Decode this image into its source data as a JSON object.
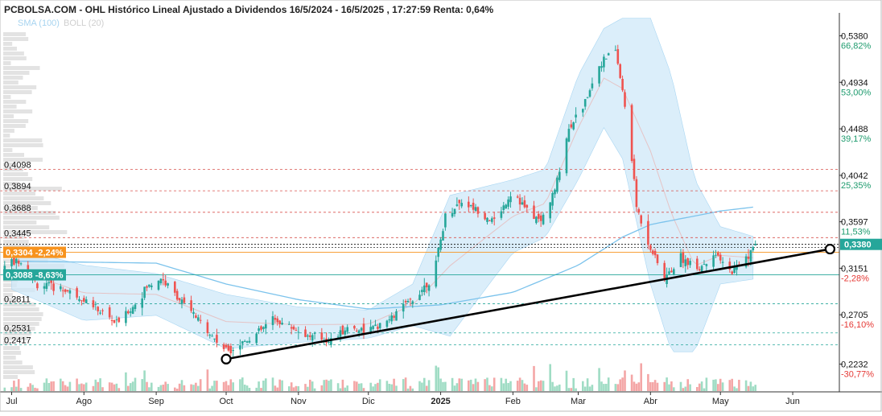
{
  "header": {
    "title": "PCBOLSA.COM - OHL Histórico Lineal Ajustado a Dividendos 16/5/2024 - 16/5/2025 , 17:27:59 Renta: 0,64%",
    "legend_sma": "SMA (100)",
    "legend_boll": "BOLL (20)"
  },
  "colors": {
    "up": "#26a69a",
    "down": "#ef5350",
    "band_fill": "#cfe8f8",
    "sma": "#7cc3ec",
    "trendline": "#000000",
    "price_tag": "#26a69a",
    "orange_tag": "#f7931e"
  },
  "chart_data": {
    "type": "candlestick",
    "title": "PCBOLSA.COM - OHL Histórico Lineal Ajustado a Dividendos 16/5/2024 - 16/5/2025 , 17:27:59 Renta: 0,64%",
    "x_range": [
      "2024-06-26",
      "2025-06-21"
    ],
    "ylim": [
      0.2125,
      0.5575
    ],
    "x_labels": [
      "Jul",
      "Ago",
      "Sep",
      "Oct",
      "Nov",
      "Dic",
      "2025",
      "Feb",
      "Mar",
      "Abr",
      "May",
      "Jun"
    ],
    "x_label_dates": [
      "2024-07-01",
      "2024-08-01",
      "2024-09-01",
      "2024-10-01",
      "2024-11-01",
      "2024-12-01",
      "2025-01-01",
      "2025-02-01",
      "2025-03-01",
      "2025-04-01",
      "2025-05-01",
      "2025-06-01"
    ],
    "right_axis": [
      {
        "value": 0.538,
        "label": "0,5380",
        "pct": "66,82%",
        "pct_sign": "pos"
      },
      {
        "value": 0.4934,
        "label": "0,4934",
        "pct": "53,00%",
        "pct_sign": "pos"
      },
      {
        "value": 0.4488,
        "label": "0,4488",
        "pct": "39,17%",
        "pct_sign": "pos"
      },
      {
        "value": 0.4042,
        "label": "0,4042",
        "pct": "25,35%",
        "pct_sign": "pos"
      },
      {
        "value": 0.3597,
        "label": "0,3597",
        "pct": "11,53%",
        "pct_sign": "pos"
      },
      {
        "value": 0.3151,
        "label": "0,3151",
        "pct": "-2,28%",
        "pct_sign": "neg"
      },
      {
        "value": 0.2705,
        "label": "0,2705",
        "pct": "-16,10%",
        "pct_sign": "neg"
      },
      {
        "value": 0.2232,
        "label": "0,2232",
        "pct": "-30,77%",
        "pct_sign": "neg"
      }
    ],
    "last_price": {
      "value": 0.338,
      "label": "0,3380"
    },
    "left_levels": [
      {
        "value": 0.4098,
        "label": "0,4098",
        "color": "#d9534f"
      },
      {
        "value": 0.3894,
        "label": "0,3894",
        "color": "#d9534f"
      },
      {
        "value": 0.3688,
        "label": "0,3688",
        "color": "#d9534f"
      },
      {
        "value": 0.3445,
        "label": "0,3445",
        "color": "#d9534f"
      },
      {
        "value": 0.2811,
        "label": "0,2811",
        "color": "#26a69a"
      },
      {
        "value": 0.2531,
        "label": "0,2531",
        "color": "#26a69a"
      },
      {
        "value": 0.2417,
        "label": "0,2417",
        "color": "#26a69a"
      }
    ],
    "tags": [
      {
        "value": 0.3304,
        "label": "0,3304",
        "pct": "-2,24%",
        "style": "orange"
      },
      {
        "value": 0.3088,
        "label": "0,3088",
        "pct": "-8,63%",
        "style": "teal"
      }
    ],
    "trendline": {
      "start": {
        "date": "2024-10-01",
        "value": 0.228
      },
      "end": {
        "date": "2025-06-17",
        "value": 0.3335
      }
    },
    "price_path": [
      {
        "date": "2024-06-26",
        "value": 0.318
      },
      {
        "date": "2024-07-05",
        "value": 0.322
      },
      {
        "date": "2024-07-12",
        "value": 0.3
      },
      {
        "date": "2024-07-22",
        "value": 0.296
      },
      {
        "date": "2024-08-01",
        "value": 0.286
      },
      {
        "date": "2024-08-08",
        "value": 0.274
      },
      {
        "date": "2024-08-15",
        "value": 0.262
      },
      {
        "date": "2024-08-22",
        "value": 0.278
      },
      {
        "date": "2024-08-28",
        "value": 0.297
      },
      {
        "date": "2024-09-03",
        "value": 0.306
      },
      {
        "date": "2024-09-10",
        "value": 0.288
      },
      {
        "date": "2024-09-18",
        "value": 0.268
      },
      {
        "date": "2024-09-25",
        "value": 0.25
      },
      {
        "date": "2024-10-01",
        "value": 0.236
      },
      {
        "date": "2024-10-07",
        "value": 0.243
      },
      {
        "date": "2024-10-14",
        "value": 0.252
      },
      {
        "date": "2024-10-21",
        "value": 0.266
      },
      {
        "date": "2024-10-28",
        "value": 0.26
      },
      {
        "date": "2024-11-05",
        "value": 0.25
      },
      {
        "date": "2024-11-15",
        "value": 0.246
      },
      {
        "date": "2024-11-22",
        "value": 0.258
      },
      {
        "date": "2024-12-01",
        "value": 0.256
      },
      {
        "date": "2024-12-08",
        "value": 0.262
      },
      {
        "date": "2024-12-15",
        "value": 0.276
      },
      {
        "date": "2024-12-22",
        "value": 0.29
      },
      {
        "date": "2024-12-29",
        "value": 0.308
      },
      {
        "date": "2025-01-03",
        "value": 0.365
      },
      {
        "date": "2025-01-10",
        "value": 0.38
      },
      {
        "date": "2025-01-17",
        "value": 0.37
      },
      {
        "date": "2025-01-24",
        "value": 0.36
      },
      {
        "date": "2025-02-01",
        "value": 0.39
      },
      {
        "date": "2025-02-07",
        "value": 0.37
      },
      {
        "date": "2025-02-13",
        "value": 0.36
      },
      {
        "date": "2025-02-19",
        "value": 0.39
      },
      {
        "date": "2025-02-25",
        "value": 0.45
      },
      {
        "date": "2025-03-03",
        "value": 0.47
      },
      {
        "date": "2025-03-10",
        "value": 0.51
      },
      {
        "date": "2025-03-17",
        "value": 0.525
      },
      {
        "date": "2025-03-21",
        "value": 0.47
      },
      {
        "date": "2025-03-24",
        "value": 0.42
      },
      {
        "date": "2025-03-26",
        "value": 0.375
      },
      {
        "date": "2025-03-31",
        "value": 0.34
      },
      {
        "date": "2025-04-07",
        "value": 0.305
      },
      {
        "date": "2025-04-14",
        "value": 0.325
      },
      {
        "date": "2025-04-22",
        "value": 0.315
      },
      {
        "date": "2025-04-28",
        "value": 0.33
      },
      {
        "date": "2025-05-05",
        "value": 0.312
      },
      {
        "date": "2025-05-12",
        "value": 0.325
      },
      {
        "date": "2025-05-16",
        "value": 0.338
      }
    ],
    "boll_upper": [
      {
        "date": "2024-07-01",
        "value": 0.335
      },
      {
        "date": "2024-08-01",
        "value": 0.318
      },
      {
        "date": "2024-09-01",
        "value": 0.31
      },
      {
        "date": "2024-10-01",
        "value": 0.29
      },
      {
        "date": "2024-11-01",
        "value": 0.278
      },
      {
        "date": "2024-12-01",
        "value": 0.275
      },
      {
        "date": "2024-12-20",
        "value": 0.3
      },
      {
        "date": "2025-01-05",
        "value": 0.385
      },
      {
        "date": "2025-02-01",
        "value": 0.4
      },
      {
        "date": "2025-02-15",
        "value": 0.41
      },
      {
        "date": "2025-03-01",
        "value": 0.5
      },
      {
        "date": "2025-03-12",
        "value": 0.545
      },
      {
        "date": "2025-03-20",
        "value": 0.555
      },
      {
        "date": "2025-04-01",
        "value": 0.555
      },
      {
        "date": "2025-04-10",
        "value": 0.5
      },
      {
        "date": "2025-04-20",
        "value": 0.4
      },
      {
        "date": "2025-05-01",
        "value": 0.355
      },
      {
        "date": "2025-05-16",
        "value": 0.345
      }
    ],
    "boll_lower": [
      {
        "date": "2024-07-01",
        "value": 0.295
      },
      {
        "date": "2024-08-01",
        "value": 0.265
      },
      {
        "date": "2024-09-01",
        "value": 0.27
      },
      {
        "date": "2024-10-01",
        "value": 0.238
      },
      {
        "date": "2024-11-01",
        "value": 0.244
      },
      {
        "date": "2024-12-01",
        "value": 0.248
      },
      {
        "date": "2024-12-20",
        "value": 0.26
      },
      {
        "date": "2025-01-05",
        "value": 0.25
      },
      {
        "date": "2025-02-01",
        "value": 0.33
      },
      {
        "date": "2025-02-15",
        "value": 0.345
      },
      {
        "date": "2025-03-01",
        "value": 0.4
      },
      {
        "date": "2025-03-12",
        "value": 0.45
      },
      {
        "date": "2025-03-20",
        "value": 0.42
      },
      {
        "date": "2025-04-01",
        "value": 0.3
      },
      {
        "date": "2025-04-10",
        "value": 0.235
      },
      {
        "date": "2025-04-20",
        "value": 0.235
      },
      {
        "date": "2025-05-01",
        "value": 0.3
      },
      {
        "date": "2025-05-16",
        "value": 0.305
      }
    ],
    "sma100": [
      {
        "date": "2024-07-01",
        "value": 0.322
      },
      {
        "date": "2024-09-01",
        "value": 0.32
      },
      {
        "date": "2024-10-01",
        "value": 0.3
      },
      {
        "date": "2024-11-01",
        "value": 0.285
      },
      {
        "date": "2024-12-01",
        "value": 0.276
      },
      {
        "date": "2025-01-01",
        "value": 0.28
      },
      {
        "date": "2025-02-01",
        "value": 0.292
      },
      {
        "date": "2025-03-01",
        "value": 0.318
      },
      {
        "date": "2025-03-20",
        "value": 0.345
      },
      {
        "date": "2025-04-01",
        "value": 0.357
      },
      {
        "date": "2025-05-01",
        "value": 0.37
      },
      {
        "date": "2025-05-16",
        "value": 0.374
      }
    ]
  }
}
